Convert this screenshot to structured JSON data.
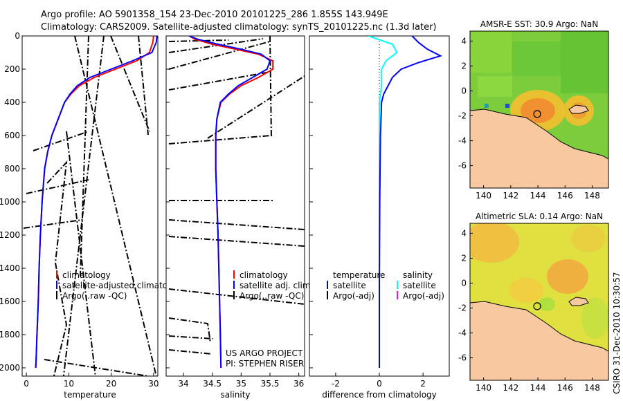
{
  "title_line1": "Argo profile: AO 5901358_154 23-Dec-2010 20101225_286 1.855S 143.949E",
  "title_line2": "Climatology: CARS2009. Satellite-adjusted climatology: synTS_20101225.nc (1.3d later)",
  "side_label": "CSIRO 31-Dec-2010 10:30:57",
  "colors": {
    "climatology": "#ff0000",
    "satellite": "#0000ff",
    "argo": "#000000",
    "sat_salinity": "#00ffff",
    "argo_salinity_adj": "#ff00ff",
    "land": "#f8c8a0"
  },
  "chart_data": [
    {
      "type": "line",
      "id": "temperature",
      "xlabel": "temperature",
      "ylabel": "",
      "xlim": [
        -1,
        31
      ],
      "ylim": [
        2050,
        0
      ],
      "xticks": [
        0,
        10,
        20,
        30
      ],
      "yticks": [
        0,
        200,
        400,
        600,
        800,
        1000,
        1200,
        1400,
        1600,
        1800,
        2000
      ],
      "legend": [
        "climatology",
        "satellite-adjusted climatolog",
        "Argo(..raw -QC)"
      ],
      "series": [
        {
          "name": "climatology",
          "color": "#ff0000",
          "x": [
            30.0,
            29.8,
            29.0,
            26.0,
            21.0,
            16.0,
            12.5,
            10.5,
            9.0,
            7.5,
            6.0,
            5.0,
            4.3,
            3.7,
            3.3,
            3.0,
            2.8,
            2.5,
            2.3,
            2.2
          ],
          "y": [
            0,
            40,
            100,
            150,
            200,
            250,
            300,
            350,
            400,
            500,
            600,
            700,
            800,
            1000,
            1200,
            1400,
            1600,
            1800,
            1950,
            2000
          ]
        },
        {
          "name": "satellite-adjusted climatology",
          "color": "#0000ff",
          "x": [
            30.8,
            30.6,
            29.6,
            25.0,
            20.0,
            15.0,
            12.0,
            10.3,
            9.0,
            7.5,
            6.0,
            5.0,
            4.3,
            3.7,
            3.3,
            3.0,
            2.8,
            2.5,
            2.3,
            2.2
          ],
          "y": [
            0,
            40,
            100,
            150,
            200,
            250,
            300,
            350,
            400,
            500,
            600,
            700,
            800,
            1000,
            1200,
            1400,
            1600,
            1800,
            1950,
            2000
          ]
        }
      ]
    },
    {
      "type": "line",
      "id": "salinity",
      "xlabel": "salinity",
      "xlim": [
        33.7,
        36.1
      ],
      "ylim": [
        2050,
        0
      ],
      "xticks": [
        34,
        34.5,
        35,
        35.5,
        36
      ],
      "legend": [
        "climatology",
        "satellite adj. clim.",
        "Argo(..raw -QC)"
      ],
      "annotation": [
        "US ARGO PROJECT",
        "PI: STEPHEN RISER"
      ],
      "series": [
        {
          "name": "climatology",
          "color": "#ff0000",
          "x": [
            34.1,
            34.2,
            34.5,
            34.9,
            35.3,
            35.55,
            35.55,
            35.3,
            35.0,
            34.8,
            34.65,
            34.58,
            34.56,
            34.56,
            34.58,
            34.6,
            34.62,
            34.64,
            34.65
          ],
          "y": [
            0,
            20,
            50,
            80,
            110,
            150,
            200,
            250,
            300,
            350,
            400,
            500,
            600,
            800,
            1000,
            1200,
            1500,
            1800,
            2000
          ]
        },
        {
          "name": "satellite adj. clim.",
          "color": "#0000ff",
          "x": [
            34.1,
            34.25,
            34.6,
            35.0,
            35.35,
            35.5,
            35.45,
            35.2,
            34.95,
            34.78,
            34.64,
            34.58,
            34.56,
            34.56,
            34.58,
            34.6,
            34.62,
            34.64,
            34.65
          ],
          "y": [
            0,
            20,
            50,
            80,
            110,
            150,
            200,
            250,
            300,
            350,
            400,
            500,
            600,
            800,
            1000,
            1200,
            1500,
            1800,
            2000
          ]
        }
      ]
    },
    {
      "type": "line",
      "id": "difference",
      "xlabel": "difference from climatology",
      "xlim": [
        -3.2,
        3.2
      ],
      "ylim": [
        2050,
        0
      ],
      "xticks": [
        -2,
        0,
        2
      ],
      "legend_titles": [
        "temperature",
        "salinity"
      ],
      "legend_left": [
        "satellite",
        "Argo(-adj)"
      ],
      "legend_right": [
        "satellite",
        "Argo(-adj)"
      ],
      "series": [
        {
          "name": "temperature satellite",
          "color": "#0000ff",
          "x": [
            1.5,
            1.8,
            2.2,
            2.8,
            1.8,
            1.0,
            0.6,
            0.4,
            0.2,
            0.1,
            0.05,
            0.02,
            0.0,
            0.0
          ],
          "y": [
            0,
            40,
            80,
            120,
            160,
            200,
            250,
            300,
            350,
            400,
            600,
            1000,
            1500,
            2000
          ]
        },
        {
          "name": "salinity satellite",
          "color": "#00ffff",
          "x": [
            -0.5,
            0.6,
            0.8,
            0.3,
            0.1,
            0.1,
            0.0,
            0.0,
            0.0,
            0.0
          ],
          "y": [
            0,
            50,
            100,
            150,
            200,
            300,
            400,
            600,
            1000,
            2000
          ]
        }
      ]
    },
    {
      "type": "heatmap",
      "id": "sst_map",
      "title": "AMSR-E SST: 30.9 Argo: NaN",
      "xlim": [
        139,
        149.2
      ],
      "ylim": [
        -7.8,
        4.8
      ],
      "xticks": [
        140,
        142,
        144,
        146,
        148
      ],
      "yticks": [
        4,
        2,
        0,
        -2,
        -4,
        -6
      ],
      "marker": {
        "lon": 143.949,
        "lat": -1.855
      }
    },
    {
      "type": "heatmap",
      "id": "sla_map",
      "title": "Altimetric SLA: 0.14 Argo: NaN",
      "xlim": [
        139,
        149.2
      ],
      "ylim": [
        -7.8,
        4.8
      ],
      "xticks": [
        140,
        142,
        144,
        146,
        148
      ],
      "yticks": [
        4,
        2,
        0,
        -2,
        -4,
        -6
      ],
      "marker": {
        "lon": 143.949,
        "lat": -1.855
      }
    }
  ]
}
